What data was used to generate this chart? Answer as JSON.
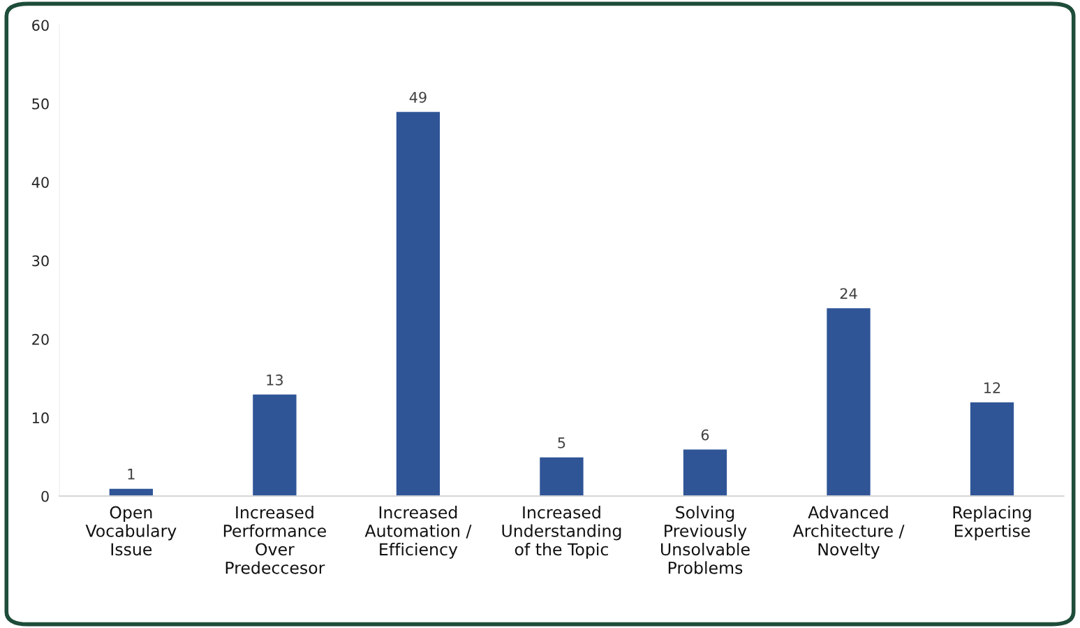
{
  "chart_data": {
    "type": "bar",
    "categories": [
      "Open\nVocabulary\nIssue",
      "Increased\nPerformance\nOver\nPredeccesor",
      "Increased\nAutomation /\nEfficiency",
      "Increased\nUnderstanding\nof the Topic",
      "Solving\nPreviously\nUnsolvable\nProblems",
      "Advanced\nArchitecture /\nNovelty",
      "Replacing\nExpertise"
    ],
    "values": [
      1,
      13,
      49,
      5,
      6,
      24,
      12
    ],
    "color": "#2f5597",
    "ylim": [
      0,
      60
    ],
    "yticks": [
      0,
      10,
      20,
      30,
      40,
      50,
      60
    ],
    "data_labels": true,
    "grid": false,
    "legend": false
  }
}
